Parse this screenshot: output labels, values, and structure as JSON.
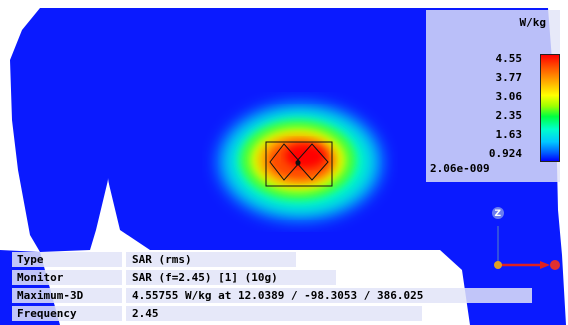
{
  "colors": {
    "background": "#0000ff",
    "panel": "#e2e4f8",
    "hotspot_center": "#ff0000",
    "axis_x": "#e02020",
    "axis_z": "#2040e0"
  },
  "colorbar": {
    "unit": "W/kg",
    "ticks": [
      "4.55",
      "3.77",
      "3.06",
      "2.35",
      "1.63",
      "0.924"
    ],
    "min_label": "2.06e-009"
  },
  "info_table": [
    {
      "key": "Type",
      "value": "SAR (rms)"
    },
    {
      "key": "Monitor",
      "value": "SAR (f=2.45) [1] (10g)"
    },
    {
      "key": "Maximum-3D",
      "value": "4.55755 W/kg at 12.0389 / -98.3053 / 386.025"
    },
    {
      "key": "Frequency",
      "value": "2.45"
    }
  ],
  "axes": {
    "z_label": "Z",
    "icon": "coordinate-axes-icon"
  }
}
